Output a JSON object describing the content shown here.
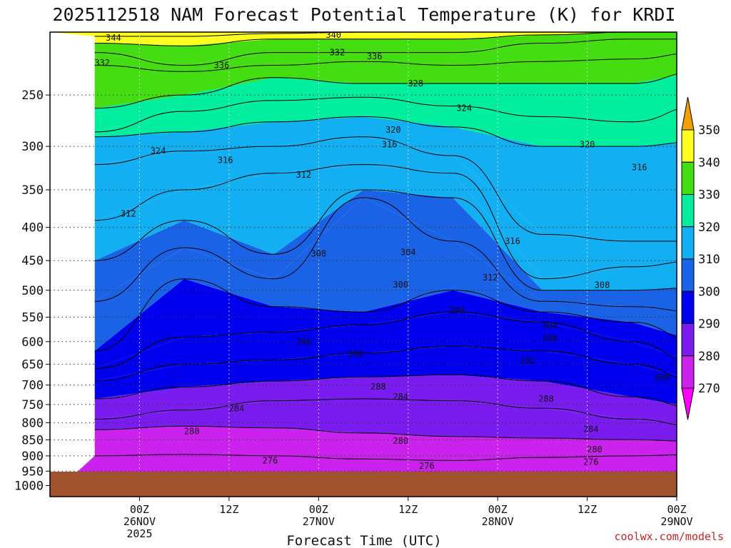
{
  "chart_data": {
    "type": "heatmap",
    "title": "2025112518 NAM Forecast Potential Temperature (K) for KRDI",
    "xlabel": "Forecast Time (UTC)",
    "ylabel": "",
    "y_axis": {
      "scale": "log",
      "reversed": true,
      "ylim": [
        200,
        1040
      ],
      "ticks": [
        250,
        300,
        350,
        400,
        450,
        500,
        550,
        600,
        650,
        700,
        750,
        800,
        850,
        900,
        950,
        1000
      ]
    },
    "x_axis": {
      "xlim_hours": [
        -12,
        72
      ],
      "ticks": [
        {
          "hour": 0,
          "lines": [
            "00Z",
            "26NOV",
            "2025"
          ]
        },
        {
          "hour": 12,
          "lines": [
            "12Z"
          ]
        },
        {
          "hour": 24,
          "lines": [
            "00Z",
            "27NOV"
          ]
        },
        {
          "hour": 36,
          "lines": [
            "12Z"
          ]
        },
        {
          "hour": 48,
          "lines": [
            "00Z",
            "28NOV"
          ]
        },
        {
          "hour": 60,
          "lines": [
            "12Z"
          ]
        },
        {
          "hour": 72,
          "lines": [
            "00Z",
            "29NOV"
          ]
        }
      ]
    },
    "grid": true,
    "colorbar": {
      "placement": "right",
      "levels": [
        270,
        280,
        290,
        300,
        310,
        320,
        330,
        340,
        350
      ],
      "colors": [
        "#ff00ff",
        "#cc22ee",
        "#7a1cf0",
        "#0000ee",
        "#1a63e6",
        "#12b0f2",
        "#00ee9e",
        "#44dd11",
        "#ffff22",
        "#f0a000"
      ]
    },
    "series": [
      {
        "name": "276",
        "values": [
          [
            -6,
            900
          ],
          [
            6,
            895
          ],
          [
            18,
            900
          ],
          [
            30,
            910
          ],
          [
            42,
            915
          ],
          [
            54,
            905
          ],
          [
            66,
            900
          ],
          [
            75,
            895
          ]
        ]
      },
      {
        "name": "280",
        "values": [
          [
            -6,
            820
          ],
          [
            6,
            810
          ],
          [
            18,
            815
          ],
          [
            30,
            830
          ],
          [
            42,
            840
          ],
          [
            54,
            845
          ],
          [
            66,
            850
          ],
          [
            75,
            855
          ]
        ]
      },
      {
        "name": "284",
        "values": [
          [
            -6,
            790
          ],
          [
            6,
            765
          ],
          [
            18,
            740
          ],
          [
            30,
            735
          ],
          [
            42,
            740
          ],
          [
            54,
            760
          ],
          [
            66,
            790
          ],
          [
            75,
            810
          ]
        ]
      },
      {
        "name": "288",
        "values": [
          [
            -6,
            735
          ],
          [
            6,
            705
          ],
          [
            18,
            690
          ],
          [
            30,
            680
          ],
          [
            42,
            675
          ],
          [
            54,
            690
          ],
          [
            66,
            730
          ],
          [
            75,
            760
          ]
        ]
      },
      {
        "name": "292",
        "values": [
          [
            -6,
            690
          ],
          [
            6,
            650
          ],
          [
            18,
            640
          ],
          [
            30,
            625
          ],
          [
            42,
            610
          ],
          [
            54,
            620
          ],
          [
            66,
            650
          ],
          [
            75,
            690
          ]
        ]
      },
      {
        "name": "296",
        "values": [
          [
            -6,
            660
          ],
          [
            6,
            590
          ],
          [
            18,
            580
          ],
          [
            30,
            565
          ],
          [
            42,
            540
          ],
          [
            54,
            560
          ],
          [
            66,
            600
          ],
          [
            75,
            650
          ]
        ]
      },
      {
        "name": "300",
        "values": [
          [
            -6,
            620
          ],
          [
            6,
            480
          ],
          [
            18,
            530
          ],
          [
            30,
            540
          ],
          [
            42,
            500
          ],
          [
            54,
            540
          ],
          [
            66,
            560
          ],
          [
            75,
            600
          ]
        ]
      },
      {
        "name": "304",
        "values": [
          [
            -6,
            520
          ],
          [
            6,
            430
          ],
          [
            18,
            480
          ],
          [
            30,
            360
          ],
          [
            42,
            420
          ],
          [
            54,
            520
          ],
          [
            66,
            530
          ],
          [
            75,
            540
          ]
        ]
      },
      {
        "name": "308",
        "values": [
          [
            -6,
            450
          ],
          [
            6,
            390
          ],
          [
            18,
            440
          ],
          [
            30,
            350
          ],
          [
            42,
            360
          ],
          [
            54,
            500
          ],
          [
            66,
            500
          ],
          [
            75,
            495
          ]
        ]
      },
      {
        "name": "312",
        "values": [
          [
            -6,
            390
          ],
          [
            6,
            350
          ],
          [
            18,
            330
          ],
          [
            30,
            320
          ],
          [
            42,
            330
          ],
          [
            54,
            480
          ],
          [
            66,
            460
          ],
          [
            75,
            450
          ]
        ]
      },
      {
        "name": "316",
        "values": [
          [
            -6,
            320
          ],
          [
            6,
            305
          ],
          [
            18,
            300
          ],
          [
            30,
            290
          ],
          [
            42,
            310
          ],
          [
            54,
            410
          ],
          [
            66,
            420
          ],
          [
            75,
            420
          ]
        ]
      },
      {
        "name": "320",
        "values": [
          [
            -6,
            290
          ],
          [
            6,
            285
          ],
          [
            18,
            275
          ],
          [
            30,
            270
          ],
          [
            42,
            280
          ],
          [
            54,
            300
          ],
          [
            66,
            300
          ],
          [
            75,
            295
          ]
        ]
      },
      {
        "name": "324",
        "values": [
          [
            -6,
            285
          ],
          [
            6,
            265
          ],
          [
            18,
            255
          ],
          [
            30,
            252
          ],
          [
            42,
            260
          ],
          [
            54,
            270
          ],
          [
            66,
            275
          ],
          [
            75,
            260
          ]
        ]
      },
      {
        "name": "328",
        "values": [
          [
            -6,
            262
          ],
          [
            6,
            250
          ],
          [
            18,
            235
          ],
          [
            30,
            240
          ],
          [
            42,
            240
          ],
          [
            54,
            240
          ],
          [
            66,
            240
          ],
          [
            75,
            230
          ]
        ]
      },
      {
        "name": "332",
        "values": [
          [
            -6,
            225
          ],
          [
            6,
            230
          ],
          [
            18,
            225
          ],
          [
            30,
            222
          ],
          [
            42,
            225
          ],
          [
            54,
            222
          ],
          [
            66,
            220
          ],
          [
            75,
            215
          ]
        ]
      },
      {
        "name": "336",
        "values": [
          [
            -6,
            215
          ],
          [
            6,
            225
          ],
          [
            18,
            215
          ],
          [
            30,
            215
          ],
          [
            42,
            215
          ],
          [
            54,
            208
          ],
          [
            66,
            205
          ],
          [
            75,
            205
          ]
        ]
      },
      {
        "name": "340",
        "values": [
          [
            -6,
            208
          ],
          [
            6,
            210
          ],
          [
            18,
            205
          ],
          [
            30,
            205
          ],
          [
            42,
            205
          ],
          [
            54,
            202
          ],
          [
            66,
            200
          ],
          [
            75,
            200
          ]
        ]
      },
      {
        "name": "344",
        "values": [
          [
            -6,
            203
          ],
          [
            6,
            203
          ],
          [
            18,
            201
          ],
          [
            30,
            200
          ],
          [
            42,
            200
          ],
          [
            54,
            200
          ],
          [
            66,
            200
          ],
          [
            75,
            200
          ]
        ]
      }
    ],
    "contour_labels": [
      {
        "text": "344",
        "x": -3.5,
        "y": 204
      },
      {
        "text": "340",
        "x": 26,
        "y": 202
      },
      {
        "text": "332",
        "x": -5,
        "y": 223
      },
      {
        "text": "332",
        "x": 26.5,
        "y": 215
      },
      {
        "text": "336",
        "x": 11,
        "y": 225
      },
      {
        "text": "336",
        "x": 31.5,
        "y": 218
      },
      {
        "text": "328",
        "x": 37,
        "y": 240
      },
      {
        "text": "324",
        "x": 43.5,
        "y": 262
      },
      {
        "text": "320",
        "x": 34,
        "y": 283
      },
      {
        "text": "316",
        "x": 33.5,
        "y": 298
      },
      {
        "text": "324",
        "x": 2.5,
        "y": 305
      },
      {
        "text": "316",
        "x": 11.5,
        "y": 315
      },
      {
        "text": "320",
        "x": 60,
        "y": 298
      },
      {
        "text": "316",
        "x": 67,
        "y": 323
      },
      {
        "text": "312",
        "x": 22,
        "y": 332
      },
      {
        "text": "312",
        "x": -1.5,
        "y": 381
      },
      {
        "text": "308",
        "x": 24,
        "y": 439
      },
      {
        "text": "304",
        "x": 36,
        "y": 437
      },
      {
        "text": "316",
        "x": 50,
        "y": 420
      },
      {
        "text": "312",
        "x": 47,
        "y": 478
      },
      {
        "text": "300",
        "x": 35,
        "y": 490
      },
      {
        "text": "308",
        "x": 62,
        "y": 491
      },
      {
        "text": "298",
        "x": 42.5,
        "y": 537
      },
      {
        "text": "304",
        "x": 55,
        "y": 567
      },
      {
        "text": "300",
        "x": 55,
        "y": 593
      },
      {
        "text": "296",
        "x": 22,
        "y": 600
      },
      {
        "text": "292",
        "x": 29,
        "y": 627
      },
      {
        "text": "292",
        "x": 52,
        "y": 643
      },
      {
        "text": "300",
        "x": 70,
        "y": 681
      },
      {
        "text": "288",
        "x": 32,
        "y": 704
      },
      {
        "text": "284",
        "x": 35,
        "y": 730
      },
      {
        "text": "288",
        "x": 54.5,
        "y": 735
      },
      {
        "text": "284",
        "x": 13,
        "y": 761
      },
      {
        "text": "284",
        "x": 60.5,
        "y": 819
      },
      {
        "text": "280",
        "x": 7,
        "y": 825
      },
      {
        "text": "280",
        "x": 35,
        "y": 854
      },
      {
        "text": "280",
        "x": 61,
        "y": 880
      },
      {
        "text": "276",
        "x": 17.5,
        "y": 915
      },
      {
        "text": "276",
        "x": 60.5,
        "y": 920
      },
      {
        "text": "276",
        "x": 38.5,
        "y": 933
      }
    ]
  },
  "credit": "coolwx.com/models"
}
